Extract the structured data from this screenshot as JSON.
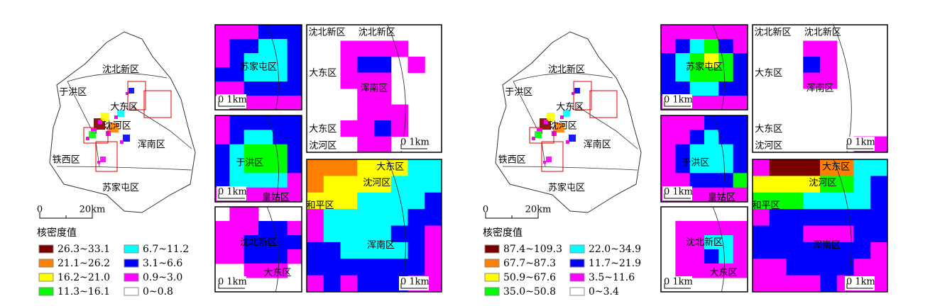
{
  "panels": [
    {
      "main_labels": [
        "沈北新区",
        "于洪区",
        "大东区",
        "沈河区",
        "浑南区",
        "铁西区",
        "苏家屯区"
      ],
      "scale": {
        "start": "0",
        "end": "20km"
      },
      "legend": {
        "title": "核密度值",
        "items": [
          {
            "label": "26.3~33.1",
            "color": "#7a0000"
          },
          {
            "label": "21.1~26.2",
            "color": "#ff8000"
          },
          {
            "label": "16.2~21.0",
            "color": "#ffff00"
          },
          {
            "label": "11.3~16.1",
            "color": "#00ff00"
          },
          {
            "label": "6.7~11.2",
            "color": "#00ffff"
          },
          {
            "label": "3.1~6.6",
            "color": "#0000ff"
          },
          {
            "label": "0.9~3.0",
            "color": "#ff00ff"
          },
          {
            "label": "0~0.8",
            "color": "#ffffff"
          }
        ]
      },
      "insets": [
        {
          "labels": [
            "苏家屯区"
          ],
          "scale": "0 1km"
        },
        {
          "labels": [
            "于洪区",
            "皇姑区"
          ],
          "scale": "0 1km"
        },
        {
          "labels": [
            "沈北新区",
            "大东区"
          ],
          "scale": "0 1km"
        },
        {
          "labels": [
            "沈北新区",
            "沈北新区",
            "大东区",
            "浑南区",
            "大东区",
            "沈河区"
          ],
          "scale": "0 1km"
        },
        {
          "labels": [
            "大东区",
            "沈河区",
            "和平区",
            "浑南区"
          ],
          "scale": "0 1km"
        }
      ]
    },
    {
      "main_labels": [
        "沈北新区",
        "于洪区",
        "大东区",
        "沈河区",
        "浑南区",
        "铁西区",
        "苏家屯区"
      ],
      "scale": {
        "start": "0",
        "end": "20km"
      },
      "legend": {
        "title": "核密度值",
        "items": [
          {
            "label": "87.4~109.3",
            "color": "#7a0000"
          },
          {
            "label": "67.7~87.3",
            "color": "#ff8000"
          },
          {
            "label": "50.9~67.6",
            "color": "#ffff00"
          },
          {
            "label": "35.0~50.8",
            "color": "#00ff00"
          },
          {
            "label": "22.0~34.9",
            "color": "#00ffff"
          },
          {
            "label": "11.7~21.9",
            "color": "#0000ff"
          },
          {
            "label": "3.5~11.6",
            "color": "#ff00ff"
          },
          {
            "label": "0~3.4",
            "color": "#ffffff"
          }
        ]
      },
      "insets": [
        {
          "labels": [
            "苏家屯区"
          ],
          "scale": "0 1km"
        },
        {
          "labels": [
            "于洪区",
            "皇姑区"
          ],
          "scale": "0 1km"
        },
        {
          "labels": [
            "沈北新区",
            "大东区"
          ],
          "scale": "0 1km"
        },
        {
          "labels": [
            "沈北新区",
            "沈北新区",
            "大东区",
            "浑南区",
            "大东区",
            "沈河区"
          ],
          "scale": "0 1km"
        },
        {
          "labels": [
            "大东区",
            "沈河区",
            "和平区",
            "浑南区"
          ],
          "scale": "0 1km"
        }
      ]
    }
  ]
}
